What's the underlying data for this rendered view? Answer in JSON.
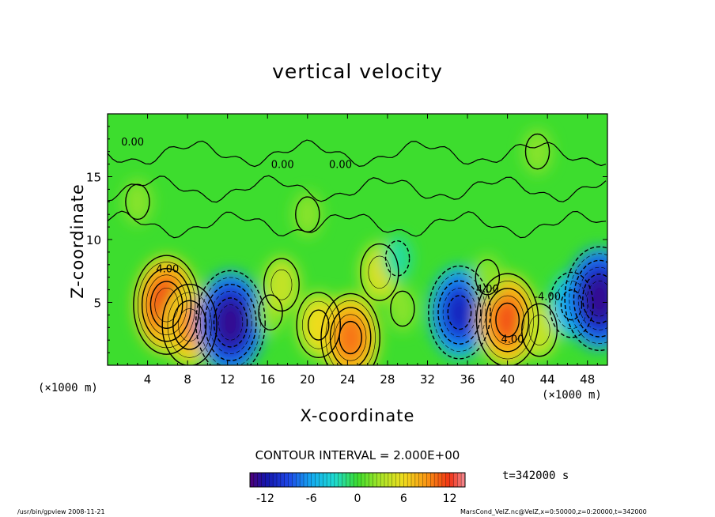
{
  "chart_data": {
    "type": "heatmap",
    "title": "vertical velocity",
    "xlabel": "X-coordinate",
    "ylabel": "Z-coordinate",
    "x_unit": "(×1000 m)",
    "x_ticks": [
      4,
      8,
      12,
      16,
      20,
      24,
      28,
      32,
      36,
      40,
      44,
      48
    ],
    "y_ticks": [
      5,
      10,
      15
    ],
    "xlim": [
      0,
      50
    ],
    "ylim": [
      0,
      20
    ],
    "contour_interval_text": "CONTOUR INTERVAL = 2.000E+00",
    "contour_labels": [
      "0.00",
      "0.00",
      "0.00",
      "4.00",
      "4.00",
      "4.00",
      "-4.00"
    ],
    "colorbar": {
      "ticks": [
        -12,
        -6,
        0,
        6,
        12
      ],
      "range": [
        -14,
        14
      ]
    },
    "features": [
      {
        "x": 5.9,
        "z": 4.8,
        "value": 12
      },
      {
        "x": 8.2,
        "z": 3.2,
        "value": 9
      },
      {
        "x": 12.3,
        "z": 3.4,
        "value": -13
      },
      {
        "x": 16.3,
        "z": 4.2,
        "value": 2
      },
      {
        "x": 17.4,
        "z": 6.4,
        "value": 4
      },
      {
        "x": 21.1,
        "z": 3.2,
        "value": 6
      },
      {
        "x": 24.3,
        "z": 2.2,
        "value": 10
      },
      {
        "x": 27.2,
        "z": 7.4,
        "value": 5
      },
      {
        "x": 29.5,
        "z": 4.5,
        "value": 2
      },
      {
        "x": 35.2,
        "z": 4.2,
        "value": -11
      },
      {
        "x": 40.0,
        "z": 3.6,
        "value": 11
      },
      {
        "x": 43.2,
        "z": 2.8,
        "value": 4
      },
      {
        "x": 46.4,
        "z": 4.8,
        "value": -6
      },
      {
        "x": 49.2,
        "z": 5.3,
        "value": -13
      },
      {
        "x": 29.0,
        "z": 8.5,
        "value": -2
      },
      {
        "x": 38.0,
        "z": 7.0,
        "value": 2
      },
      {
        "x": 20.0,
        "z": 12.0,
        "value": 2
      },
      {
        "x": 43.0,
        "z": 17.0,
        "value": 2
      },
      {
        "x": 3.0,
        "z": 13.0,
        "value": 2
      }
    ]
  },
  "time_label": "t=342000  s",
  "footer": {
    "left": "/usr/bin/gpview  2008-11-21",
    "right": "MarsCond_VelZ.nc@VelZ,x=0:50000,z=0:20000,t=342000"
  },
  "colors": {
    "background_field": "#3ddd2e",
    "positive_max": "#ff1a1a",
    "negative_min": "#1a1aa8"
  }
}
